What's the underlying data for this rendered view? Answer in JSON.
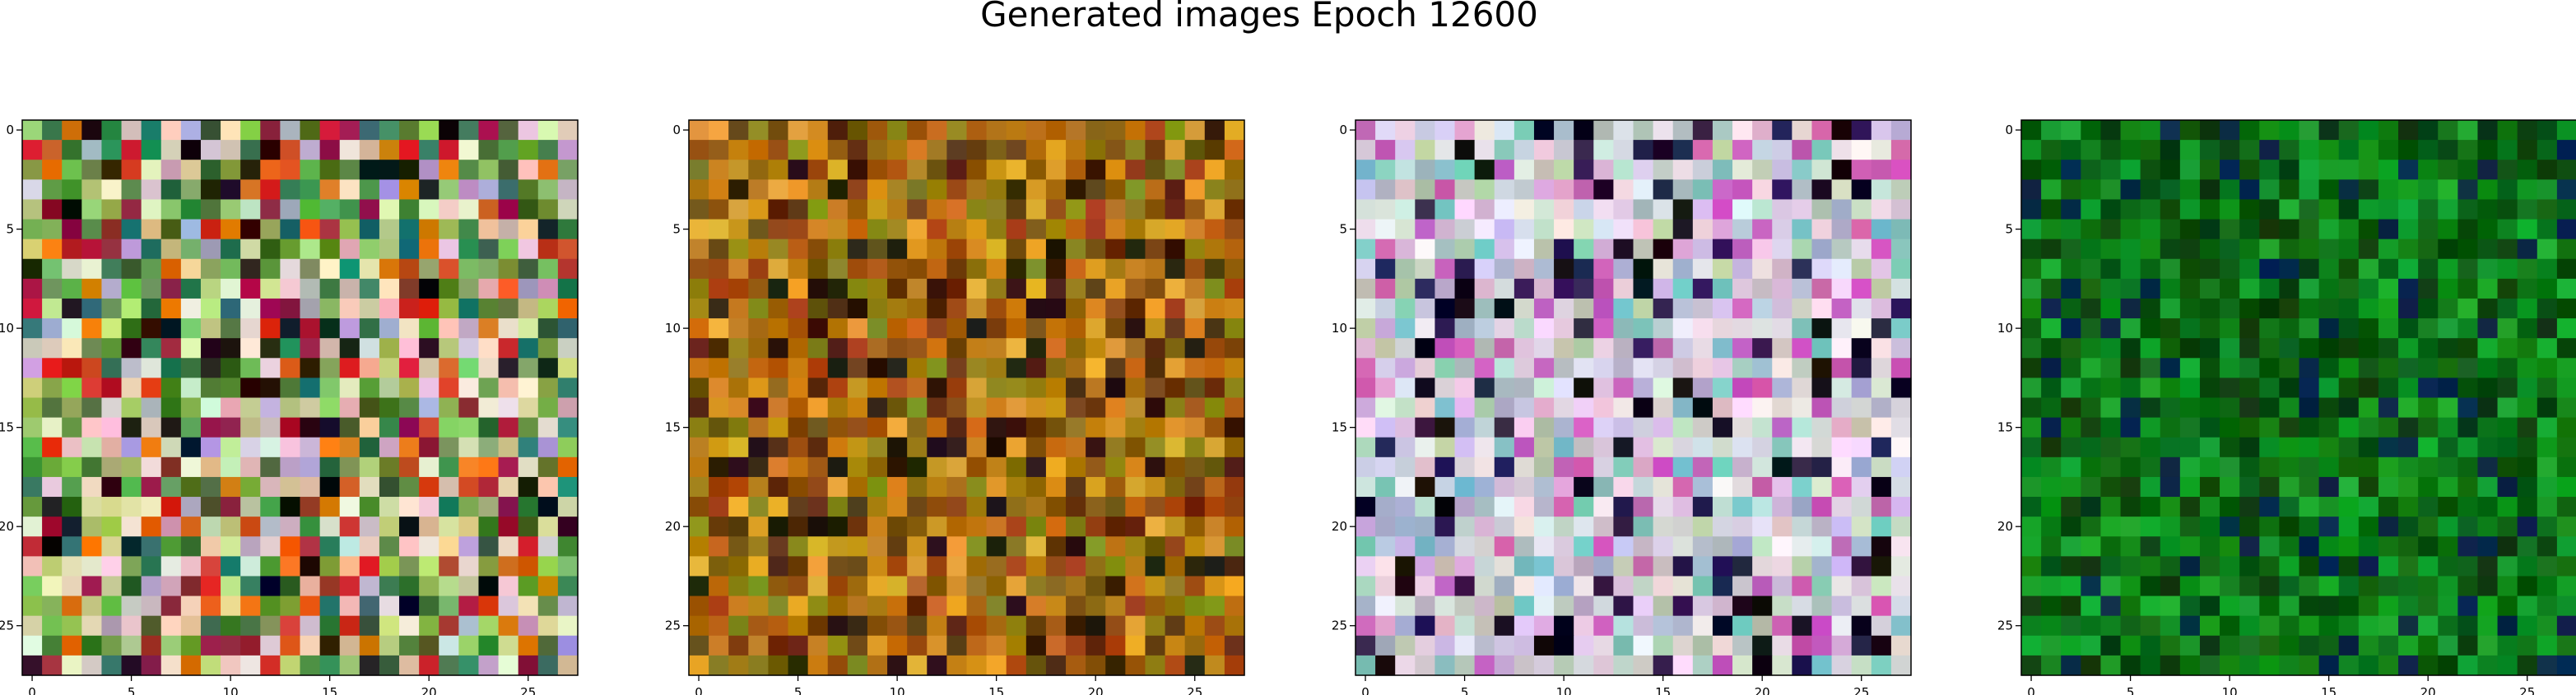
{
  "figure": {
    "title": "Generated images Epoch 12600"
  },
  "chart_data": {
    "type": "heatmap",
    "title": "Generated images Epoch 12600",
    "grid": false,
    "panels": [
      {
        "name": "",
        "width": 28,
        "height": 28,
        "base_color": "#7e9a52",
        "variation": 95,
        "contrast": "red-orange-green",
        "palette": [
          "#4f8a3a",
          "#8fbf5e",
          "#c9d28a",
          "#e0c2a8",
          "#cc2f22",
          "#e36b12",
          "#3b6b2b",
          "#b7a6c9",
          "#2a7a64",
          "#d9e1c9",
          "#9b1f3a",
          "#6ca64b",
          "#f0d8d0",
          "#191313"
        ],
        "xticks": [
          0,
          5,
          10,
          15,
          20,
          25
        ],
        "yticks": [
          0,
          5,
          10,
          15,
          20,
          25
        ],
        "xlim": [
          -0.5,
          27.5
        ],
        "ylim": [
          27.5,
          -0.5
        ]
      },
      {
        "name": "",
        "width": 28,
        "height": 28,
        "base_color": "#a46a12",
        "variation": 60,
        "contrast": "orange-brown",
        "palette": [
          "#b56f07",
          "#8e5a0b",
          "#d08d1c",
          "#6f4a10",
          "#9a7a14",
          "#e7a730",
          "#5c2d0d",
          "#a14b12",
          "#8a8a1c",
          "#2a1a0d",
          "#c7771c"
        ],
        "xticks": [
          0,
          5,
          10,
          15,
          20,
          25
        ],
        "yticks": [
          0,
          5,
          10,
          15,
          20,
          25
        ],
        "xlim": [
          -0.5,
          27.5
        ],
        "ylim": [
          27.5,
          -0.5
        ]
      },
      {
        "name": "",
        "width": 28,
        "height": 28,
        "base_color": "#d4c8d4",
        "variation": 60,
        "contrast": "pastel-with-dark",
        "palette": [
          "#d7c6e6",
          "#c8d8d2",
          "#e8d6e8",
          "#b8c9b3",
          "#f1e9f2",
          "#a9b2c8",
          "#d6b4d3",
          "#7bc4c0",
          "#e0e0e0",
          "#0d0a14",
          "#2a2050",
          "#c95ab7"
        ],
        "xticks": [
          0,
          5,
          10,
          15,
          20,
          25
        ],
        "yticks": [
          0,
          5,
          10,
          15,
          20,
          25
        ],
        "xlim": [
          -0.5,
          27.5
        ],
        "ylim": [
          27.5,
          -0.5
        ]
      },
      {
        "name": "",
        "width": 28,
        "height": 28,
        "base_color": "#0b6b14",
        "variation": 40,
        "contrast": "green",
        "palette": [
          "#0a6a12",
          "#0f7a17",
          "#085a0e",
          "#149a25",
          "#06480b",
          "#1aa830",
          "#0c3c0f",
          "#0d8b19",
          "#07284a",
          "#126c1a"
        ],
        "xticks": [
          0,
          5,
          10,
          15,
          20,
          25
        ],
        "yticks": [
          0,
          5,
          10,
          15,
          20,
          25
        ],
        "xlim": [
          -0.5,
          27.5
        ],
        "ylim": [
          27.5,
          -0.5
        ]
      }
    ]
  }
}
